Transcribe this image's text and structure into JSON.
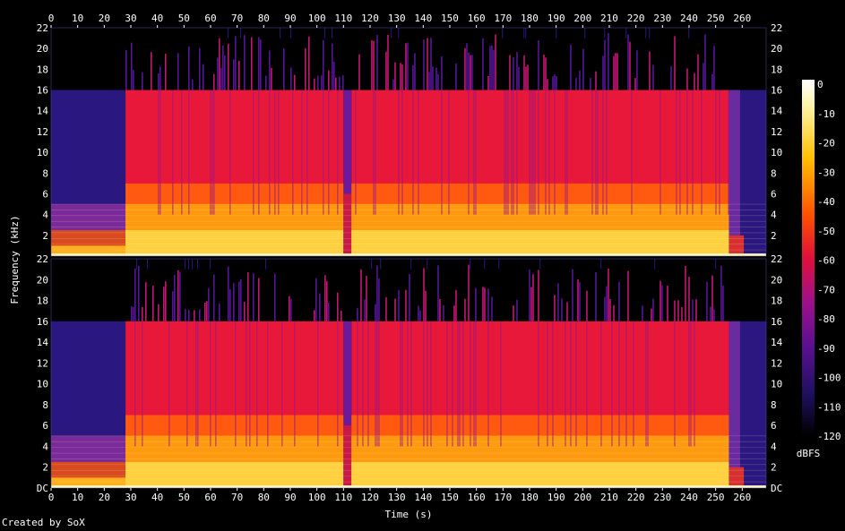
{
  "chart_data": {
    "type": "heatmap",
    "title": "",
    "xlabel": "Time (s)",
    "ylabel": "Frequency (kHz)",
    "x_ticks": [
      0,
      10,
      20,
      30,
      40,
      50,
      60,
      70,
      80,
      90,
      100,
      110,
      120,
      130,
      140,
      150,
      160,
      170,
      180,
      190,
      200,
      210,
      220,
      230,
      240,
      250,
      260
    ],
    "xlim": [
      0,
      269
    ],
    "y_ticks_top": [
      "22",
      "20",
      "18",
      "16",
      "14",
      "12",
      "10",
      "8",
      "6",
      "4",
      "2"
    ],
    "y_ticks_bottom": [
      "22",
      "20",
      "18",
      "16",
      "14",
      "12",
      "10",
      "8",
      "6",
      "4",
      "2",
      "DC"
    ],
    "ylim_khz": [
      0,
      22
    ],
    "channels": 2,
    "colorbar": {
      "label": "dBFS",
      "ticks": [
        "0",
        "-10",
        "-20",
        "-30",
        "-40",
        "-50",
        "-60",
        "-70",
        "-80",
        "-90",
        "-100",
        "-110",
        "-120"
      ],
      "range": [
        -120,
        0
      ]
    },
    "segments_s": [
      {
        "start": 0,
        "end": 28,
        "level": "quiet"
      },
      {
        "start": 28,
        "end": 110,
        "level": "loud"
      },
      {
        "start": 110,
        "end": 113,
        "level": "dip"
      },
      {
        "start": 113,
        "end": 255,
        "level": "loud"
      },
      {
        "start": 255,
        "end": 269,
        "level": "fade"
      }
    ],
    "lowpass_cutoff_khz": 16
  },
  "footer": {
    "credit": "Created by SoX"
  }
}
